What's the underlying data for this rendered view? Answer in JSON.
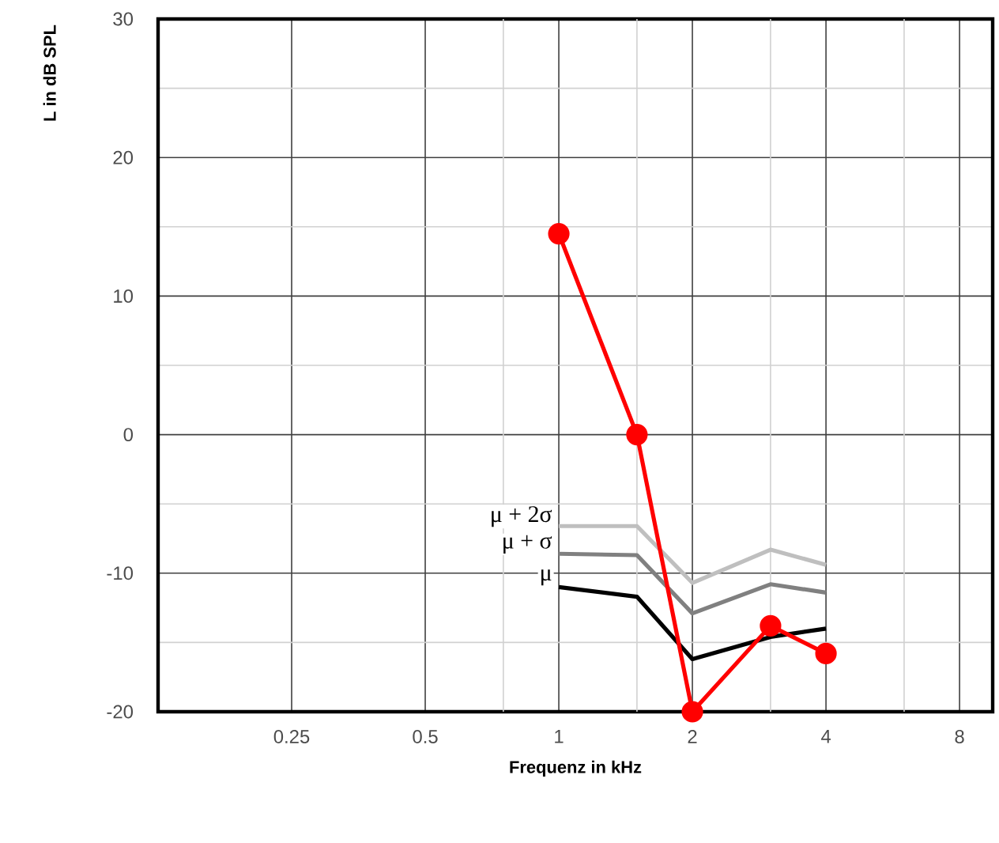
{
  "chart_data": {
    "type": "line",
    "xlabel": "Frequenz in kHz",
    "ylabel": "L in dB SPL",
    "x": [
      1,
      1.5,
      2,
      3,
      4
    ],
    "series": [
      {
        "name": "μ + 2σ",
        "color": "#bfbfbf",
        "marker": "none",
        "values": [
          -6.6,
          -6.6,
          -10.7,
          -8.3,
          -9.4
        ]
      },
      {
        "name": "μ + σ",
        "color": "#808080",
        "marker": "none",
        "values": [
          -8.6,
          -8.7,
          -12.9,
          -10.8,
          -11.4
        ]
      },
      {
        "name": "μ",
        "color": "#000000",
        "marker": "none",
        "values": [
          -11.0,
          -11.7,
          -16.2,
          -14.6,
          -14.0
        ]
      },
      {
        "color": "#ff0000",
        "marker": "circle",
        "values": [
          14.5,
          0,
          -20,
          -13.8,
          -15.8
        ]
      }
    ],
    "log": "x",
    "grid": true,
    "xlim": [
      0.125,
      9.5
    ],
    "ylim": [
      -20,
      30
    ],
    "xticks": [
      0.25,
      0.5,
      {
        "value": 0.75,
        "label": null
      },
      1,
      {
        "value": 1.5,
        "label": null
      },
      2,
      {
        "value": 3,
        "label": null
      },
      4,
      {
        "value": 6,
        "label": null
      },
      8
    ],
    "yticks": [
      -20,
      {
        "value": -15,
        "label": null
      },
      -10,
      {
        "value": -5,
        "label": null
      },
      0,
      {
        "value": 5,
        "label": null
      },
      10,
      {
        "value": 15,
        "label": null
      },
      20,
      {
        "value": 25,
        "label": null
      },
      30
    ]
  }
}
